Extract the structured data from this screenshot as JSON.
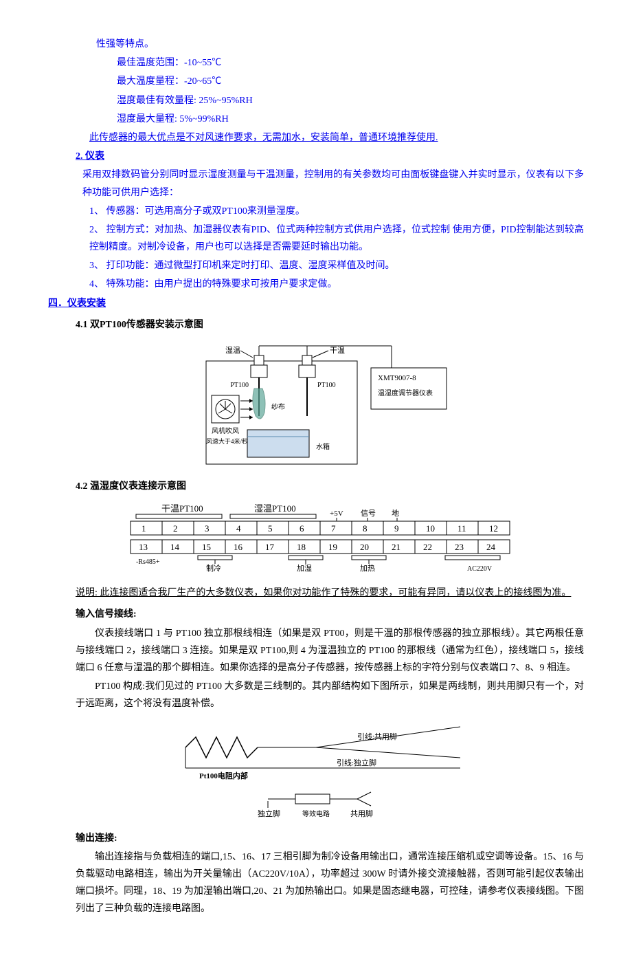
{
  "intro": {
    "bullet0": "性强等特点。",
    "line1": "最佳温度范围：-10~55℃",
    "line2": "最大温度量程：-20~65℃",
    "line3": "湿度最佳有效量程: 25%~95%RH",
    "line4": "湿度最大量程: 5%~99%RH",
    "sensor_note": "此传感器的最大优点是不对风速作要求，无需加水，安装简单，普通环境推荐使用.",
    "sec2_title": "2. 仪表",
    "sec2_p1": "采用双排数码管分别同时显示湿度测量与干温测量，控制用的有关参数均可由面板键盘键入并实时显示，仪表有以下多种功能可供用户选择：",
    "sec2_li1": "1、 传感器：可选用高分子或双PT100来测量湿度。",
    "sec2_li2": "2、 控制方式：对加热、加湿器仪表有PID、位式两种控制方式供用户选择，位式控制 使用方便，PID控制能达到较高控制精度。对制冷设备，用户也可以选择是否需要延时输出功能。",
    "sec2_li3": "3、 打印功能：通过微型打印机来定时打印、温度、湿度采样值及时间。",
    "sec2_li4": "4、 特殊功能：由用户提出的特殊要求可按用户要求定做。"
  },
  "section4": {
    "title": "四．仪表安装",
    "sub41": "4.1 双PT100传感器安装示意图",
    "sub42": "4.2 温湿度仪表连接示意图"
  },
  "diagram1": {
    "wet_label": "湿温",
    "dry_label": "干温",
    "pt100": "PT100",
    "device": "XMT9007-8",
    "device_sub": "温湿度调节器仪表",
    "cloth": "纱布",
    "tank": "水箱",
    "fan": "风机吹风",
    "fan_speed": "风速大于4米/秒"
  },
  "diagram2": {
    "dry": "干温PT100",
    "wet": "湿温PT100",
    "v5": "+5V",
    "signal": "信号",
    "ground": "地",
    "terminals_top": [
      "1",
      "2",
      "3",
      "4",
      "5",
      "6",
      "7",
      "8",
      "9",
      "10",
      "11",
      "12"
    ],
    "terminals_bot": [
      "13",
      "14",
      "15",
      "16",
      "17",
      "18",
      "19",
      "20",
      "21",
      "22",
      "23",
      "24"
    ],
    "rs485": "-Rs485+",
    "cooling": "制冷",
    "humid": "加湿",
    "heating": "加热",
    "ac": "AC220V"
  },
  "explain": {
    "note": "说明: 此连接图适合我厂生产的大多数仪表，如果你对功能作了特殊的要求，可能有异同，请以仪表上的接线图为准。",
    "input_title": "输入信号接线:",
    "input_p1": "仪表接线端口 1 与 PT100 独立那根线相连（如果是双 PT00，则是干温的那根传感器的独立那根线）。其它两根任意与接线端口 2，接线端口 3 连接。如果是双 PT100,则 4 为湿温独立的 PT100 的那根线（通常为红色），接线端口 5，接线端口 6 任意与湿温的那个脚相连。如果你选择的是高分子传感器，按传感器上标的字符分别与仪表端口 7、8、9 相连。",
    "input_p2": "PT100 构成:我们见过的 PT100 大多数是三线制的。其内部结构如下图所示，如果是两线制，则共用脚只有一个，对于远距离，这个将没有温度补偿。"
  },
  "diagram3": {
    "pt100_label": "Pt100电阻内部",
    "lead_shared": "引线:共用脚",
    "lead_indep": "引线:独立脚",
    "indep": "独立脚",
    "equiv": "等效电路",
    "shared": "共用脚"
  },
  "output": {
    "title": "输出连接:",
    "p1": "输出连接指与负载相连的端口,15、16、17 三相引脚为制冷设备用输出口，通常连接压缩机或空调等设备。15、16 与负载驱动电路相连，输出为开关量输出（AC220V/10A），功率超过 300W 时请外接交流接触器，否则可能引起仪表输出端口损坏。同理，18、19 为加湿输出端口,20、21 为加热输出口。如果是固态继电器，可控硅，请参考仪表接线图。下图列出了三种负载的连接电路图。"
  }
}
